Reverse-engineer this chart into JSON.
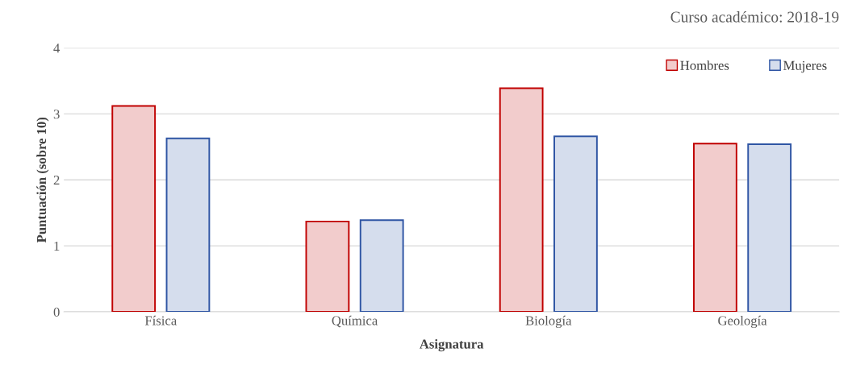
{
  "chart_data": {
    "type": "bar",
    "title": "Curso académico: 2018-19",
    "xlabel": "Asignatura",
    "ylabel": "Puntuación (sobre 10)",
    "categories": [
      "Física",
      "Química",
      "Biología",
      "Geología"
    ],
    "series": [
      {
        "name": "Hombres",
        "color": "#c00000",
        "values": [
          3.12,
          1.37,
          3.39,
          2.55
        ]
      },
      {
        "name": "Mujeres",
        "color": "#2f55a4",
        "values": [
          2.63,
          1.39,
          2.66,
          2.54
        ]
      }
    ],
    "ylim": [
      0,
      4
    ],
    "yticks": [
      0,
      1,
      2,
      3,
      4
    ],
    "grid": "y",
    "legend": "top right"
  }
}
